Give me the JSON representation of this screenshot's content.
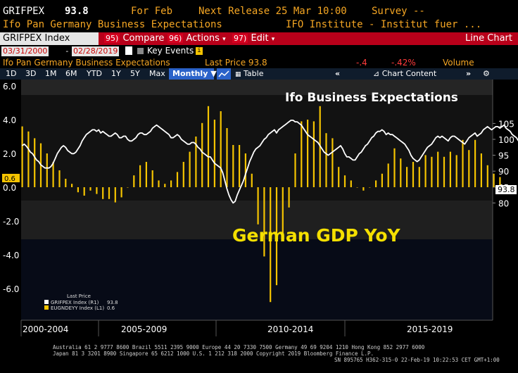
{
  "header": {
    "ticker": "GRIFPEX",
    "value": "93.8",
    "period": "For Feb",
    "next_release": "Next Release 25 Mar 10:00",
    "survey": "Survey --",
    "description": "Ifo Pan Germany Business Expectations",
    "source": "IFO Institute - Institut fuer ..."
  },
  "menu": {
    "ticker_box": "GRIFPEX Index",
    "compare_num": "95)",
    "compare": "Compare",
    "actions_num": "96)",
    "actions": "Actions",
    "edit_num": "97)",
    "edit": "Edit",
    "chart_type": "Line Chart"
  },
  "dates": {
    "start": "03/31/2000",
    "dash": "-",
    "end": "02/28/2019",
    "key_events": "Key Events"
  },
  "info": {
    "series_name": "Ifo Pan Germany Business Expectations",
    "last_price": "Last Price 93.8",
    "change": "-.4",
    "change_pct": "-.42%",
    "volume": "Volume"
  },
  "toolbar": {
    "ranges": [
      "1D",
      "3D",
      "1M",
      "6M",
      "YTD",
      "1Y",
      "5Y",
      "Max"
    ],
    "frequency": "Monthly",
    "table": "Table",
    "chart_content": "Chart Content"
  },
  "annotations": {
    "top": "Ifo Business Expectations",
    "middle": "German GDP YoY"
  },
  "legend": {
    "title": "Last Price",
    "items": [
      {
        "label": "GRIFPEX Index (R1)",
        "value": "93.8",
        "color": "#ffffff"
      },
      {
        "label": "EUGNDEYY Index (L1)",
        "value": "0.6",
        "color": "#f5c400"
      }
    ]
  },
  "markers": {
    "left": "0.6",
    "right": "93.8"
  },
  "x_labels": [
    "2000-2004",
    "2005-2009",
    "2010-2014",
    "2015-2019"
  ],
  "footer": {
    "line1": "Australia 61 2 9777 8600 Brazil 5511 2395 9000 Europe 44 20 7330 7500 Germany 49 69 9204 1210 Hong Kong 852 2977 6000",
    "line2": "Japan 81 3 3201 8900        Singapore 65 6212 1000        U.S. 1 212 318 2000          Copyright 2019 Bloomberg Finance L.P.",
    "line3": "SN 895765 H362-315-0 22-Feb-19 10:22:53 CET  GMT+1:00"
  },
  "chart_data": {
    "type": "bar+line",
    "title": "",
    "x_start": "2000-03",
    "x_end": "2019-02",
    "left_axis": {
      "label": "German GDP YoY",
      "ticks": [
        6,
        4,
        2,
        0,
        -2,
        -4,
        -6
      ],
      "tick_labels": [
        "6.0",
        "4.0",
        "2.0",
        "0.0",
        "-2.0",
        "-4.0",
        "-6.0"
      ],
      "range": [
        -7.0,
        6.4
      ]
    },
    "right_axis": {
      "label": "Ifo Business Expectations",
      "ticks": [
        105,
        100,
        95,
        90,
        85,
        80
      ],
      "range": [
        79,
        107
      ]
    },
    "colors": {
      "gdp": "#f5c400",
      "ifo": "#ffffff"
    },
    "gdp_quarterly": {
      "name": "EUGNDEYY Index",
      "start": "2000-Q1",
      "values": [
        3.6,
        3.3,
        2.9,
        2.6,
        2.0,
        1.5,
        1.0,
        0.5,
        0.2,
        -0.3,
        -0.5,
        -0.2,
        -0.4,
        -0.7,
        -0.7,
        -0.9,
        -0.6,
        0.0,
        0.7,
        1.3,
        1.5,
        1.0,
        0.4,
        0.2,
        0.4,
        0.9,
        1.5,
        2.1,
        3.0,
        3.8,
        4.8,
        4.0,
        4.5,
        3.5,
        2.5,
        2.5,
        2.0,
        0.8,
        -2.2,
        -4.1,
        -6.8,
        -5.8,
        -3.2,
        -1.2,
        2.0,
        3.9,
        4.0,
        3.9,
        4.8,
        3.2,
        2.9,
        1.2,
        0.7,
        0.4,
        0.0,
        -0.2,
        0.0,
        0.4,
        0.8,
        1.4,
        2.3,
        1.7,
        1.2,
        1.5,
        1.2,
        1.9,
        1.8,
        2.1,
        1.8,
        2.1,
        1.9,
        2.8,
        2.2,
        2.8,
        2.0,
        1.3,
        0.8,
        0.6
      ]
    },
    "ifo_monthly": {
      "name": "GRIFPEX Index",
      "start": "2000-03",
      "values": [
        98,
        98.5,
        97.9,
        97,
        96,
        95.5,
        94.5,
        93.5,
        93,
        92,
        91.5,
        91,
        91,
        91,
        91.5,
        92.5,
        94,
        95.5,
        96.5,
        97.5,
        98,
        97.5,
        96.5,
        96,
        95.5,
        95.5,
        96,
        97,
        98,
        99.5,
        100.5,
        101.5,
        102,
        102.5,
        103,
        103,
        102.5,
        103,
        102,
        102.5,
        102,
        101.5,
        101,
        101,
        101.5,
        102,
        101.5,
        100.5,
        100.5,
        101,
        101,
        100,
        99.5,
        99.5,
        100,
        100.5,
        101.5,
        102,
        102,
        101.5,
        101.5,
        102,
        102.5,
        103.5,
        104,
        104.5,
        104,
        103.5,
        103,
        102.5,
        102,
        101.5,
        100.5,
        100.5,
        101,
        101.5,
        101,
        100,
        99.5,
        99,
        98.5,
        98.5,
        99,
        99,
        98.5,
        97.5,
        97,
        96,
        95.5,
        95,
        94.5,
        94.5,
        93.5,
        92.5,
        92,
        91.5,
        91,
        89.5,
        87,
        84.5,
        82.5,
        81,
        80,
        80.5,
        82.5,
        84,
        85.5,
        87,
        89,
        91,
        93,
        94.5,
        96,
        97,
        97.5,
        98,
        99,
        100,
        100.5,
        101.5,
        102,
        102.5,
        103,
        102,
        103,
        103.5,
        104,
        104.5,
        105,
        105.5,
        106,
        106,
        105.5,
        105.5,
        105,
        104.5,
        103.5,
        102.5,
        101.5,
        101,
        100.5,
        100,
        99.5,
        99,
        98,
        97,
        96,
        95.5,
        95,
        95.5,
        96,
        96.5,
        97,
        97.5,
        98,
        97,
        95.5,
        94.5,
        94.5,
        94,
        93.5,
        93.5,
        94.5,
        95.5,
        96,
        97,
        98,
        98.5,
        99.5,
        100.5,
        101,
        102,
        102.5,
        102.5,
        103,
        102.5,
        101.5,
        102,
        101.5,
        101.5,
        101,
        100.5,
        100,
        99.5,
        99,
        98.5,
        97.5,
        96.5,
        95,
        94,
        93.5,
        93,
        93.5,
        94.5,
        95.5,
        96.5,
        97.5,
        98,
        98.5,
        99.5,
        100.5,
        101,
        100.5,
        101,
        100.5,
        100,
        99.5,
        100.5,
        101,
        101,
        100.5,
        100,
        99.5,
        99,
        98.5,
        99.5,
        100.5,
        101,
        101.5,
        102,
        101,
        101.5,
        102,
        103,
        103.5,
        104,
        103.5,
        103,
        103.5,
        104,
        104,
        103.5,
        104,
        104.5,
        103.5,
        103,
        102.5,
        101.5,
        101,
        100.5,
        99.5,
        99.5,
        100,
        100.5,
        100,
        99,
        97.5,
        95.5,
        94.5,
        94.2,
        93.8
      ]
    }
  }
}
